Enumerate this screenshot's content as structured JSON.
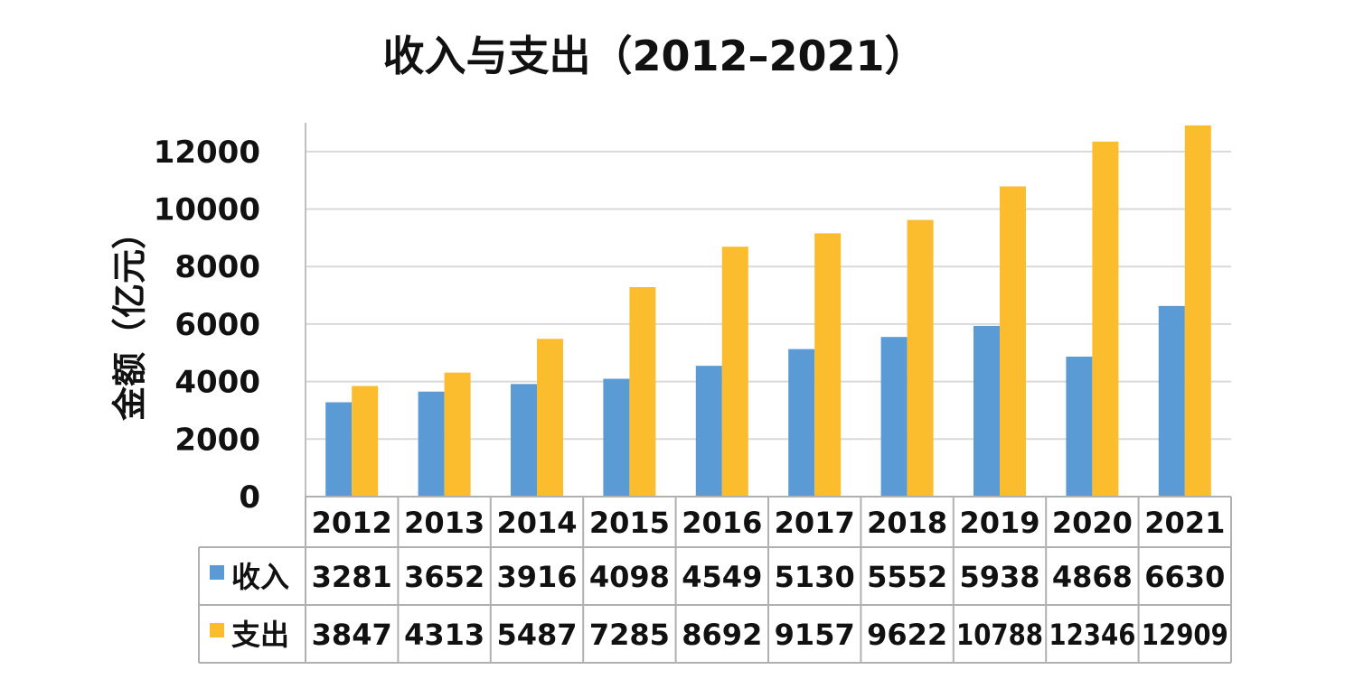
{
  "chart_data": {
    "type": "bar",
    "title": "收入与支出（2012–2021）",
    "xlabel": "",
    "ylabel": "金额（亿元）",
    "categories": [
      "2012",
      "2013",
      "2014",
      "2015",
      "2016",
      "2017",
      "2018",
      "2019",
      "2020",
      "2021"
    ],
    "series": [
      {
        "name": "收入",
        "color": "#5b9bd5",
        "values": [
          3281,
          3652,
          3916,
          4098,
          4549,
          5130,
          5552,
          5938,
          4868,
          6630
        ]
      },
      {
        "name": "支出",
        "color": "#fbbc2e",
        "values": [
          3847,
          4313,
          5487,
          7285,
          8692,
          9157,
          9622,
          10788,
          12346,
          12909
        ]
      }
    ],
    "ylim": [
      0,
      13000
    ],
    "yticks": [
      0,
      2000,
      4000,
      6000,
      8000,
      10000,
      12000
    ],
    "grid": true,
    "legend": "data-table",
    "data_table": true
  }
}
